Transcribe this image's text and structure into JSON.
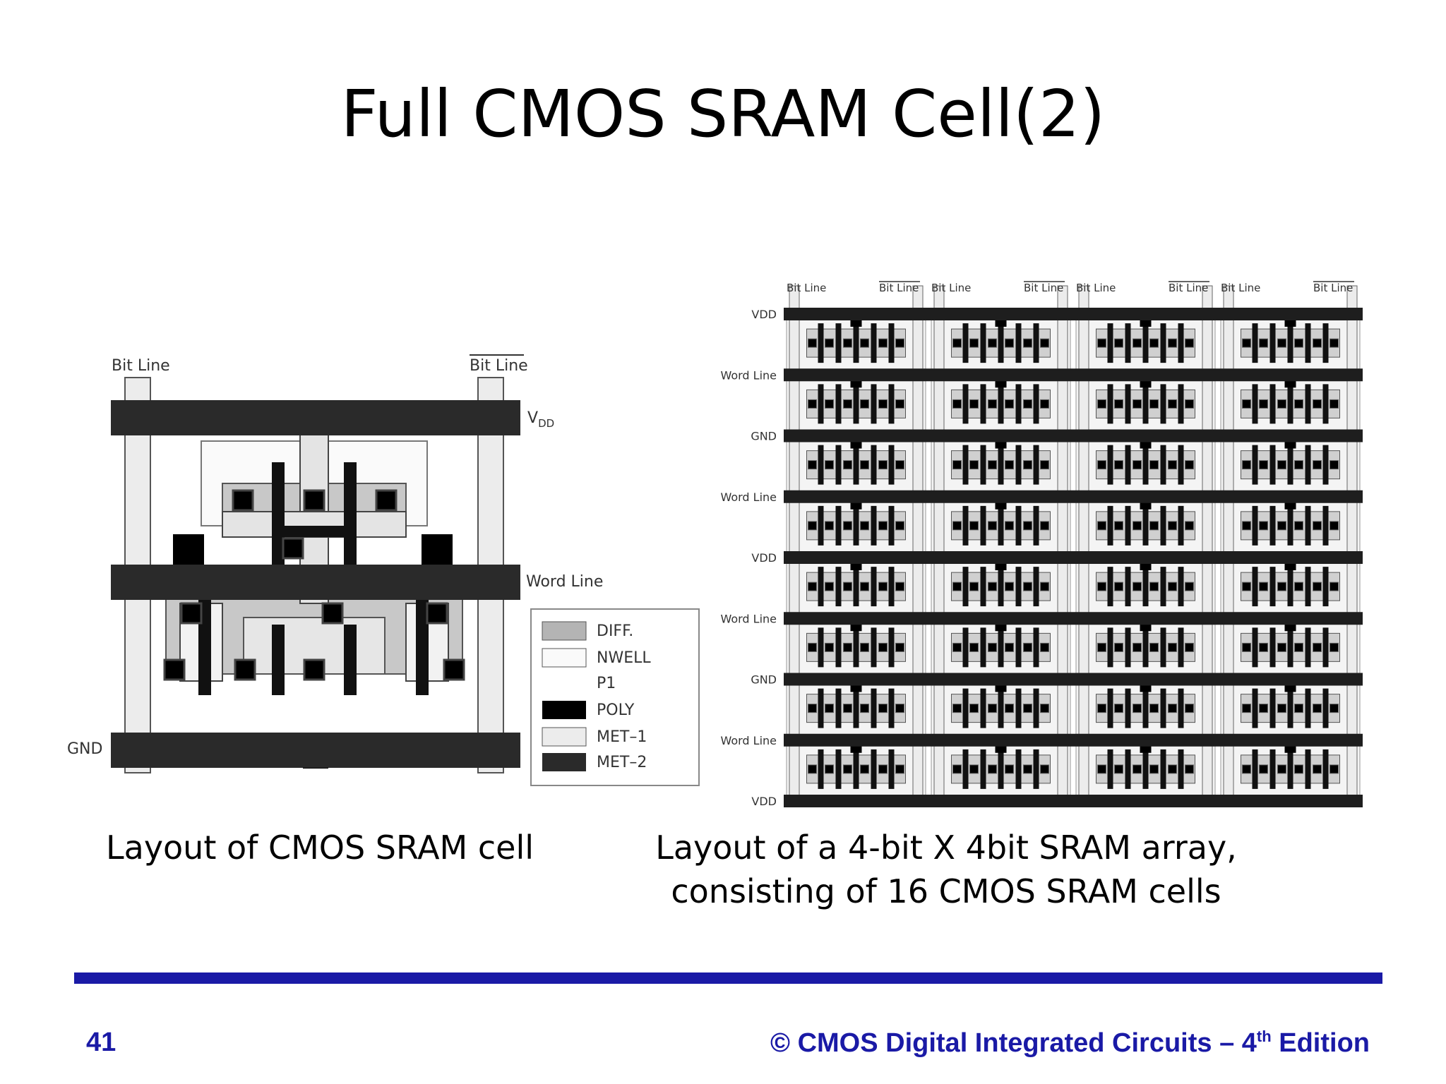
{
  "slide": {
    "title": "Full CMOS SRAM Cell(2)",
    "page_number": "41",
    "footer_prefix": "© CMOS Digital Integrated Circuits – 4",
    "footer_sup": "th",
    "footer_suffix": " Edition",
    "accent_color": "#1a1aa6"
  },
  "single_cell": {
    "caption": "Layout of CMOS SRAM cell",
    "labels": {
      "bit_line": "Bit Line",
      "bit_line_bar": "Bit Line",
      "vdd_main": "V",
      "vdd_sub": "DD",
      "word_line": "Word Line",
      "gnd": "GND"
    },
    "legend": [
      "DIFF.",
      "NWELL",
      "P1",
      "POLY",
      "MET–1",
      "MET–2"
    ]
  },
  "array": {
    "caption_line1": "Layout of a 4-bit X 4bit SRAM array,",
    "caption_line2": "consisting of 16 CMOS SRAM cells",
    "top_labels": [
      "Bit Line",
      "Bit Line",
      "Bit Line",
      "Bit Line",
      "Bit Line",
      "Bit Line",
      "Bit Line",
      "Bit Line"
    ],
    "row_labels": [
      "VDD",
      "Word Line",
      "GND",
      "Word Line",
      "VDD",
      "Word Line",
      "GND",
      "Word Line",
      "VDD"
    ]
  }
}
